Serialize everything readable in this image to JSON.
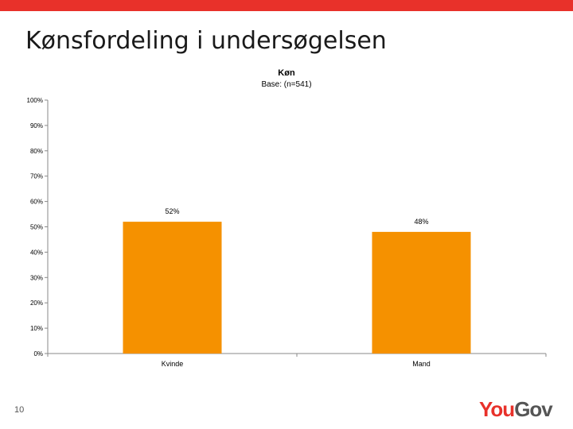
{
  "slide": {
    "title": "Kønsfordeling i undersøgelsen",
    "page_number": "10"
  },
  "logo": {
    "part1": "You",
    "part2": "Gov"
  },
  "colors": {
    "accent_bar": "#e8312a",
    "bar": "#f59100",
    "logo_red": "#e8312a",
    "logo_gray": "#555555"
  },
  "chart_data": {
    "type": "bar",
    "title": "Køn",
    "subtitle": "Base: (n=541)",
    "categories": [
      "Kvinde",
      "Mand"
    ],
    "values": [
      52,
      48
    ],
    "data_labels": [
      "52%",
      "48%"
    ],
    "y_ticks": [
      "0%",
      "10%",
      "20%",
      "30%",
      "40%",
      "50%",
      "60%",
      "70%",
      "80%",
      "90%",
      "100%"
    ],
    "ylim": [
      0,
      100
    ],
    "grid": false,
    "legend": "none"
  }
}
